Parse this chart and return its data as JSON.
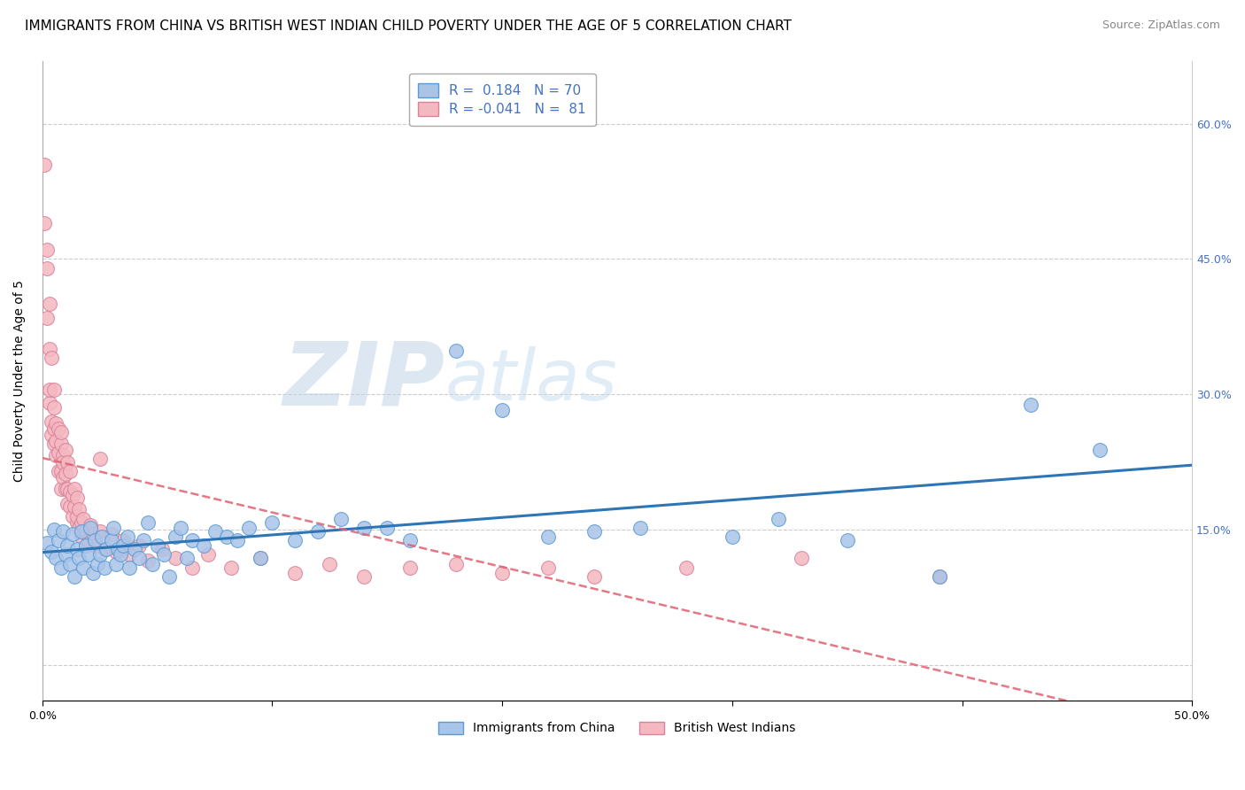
{
  "title": "IMMIGRANTS FROM CHINA VS BRITISH WEST INDIAN CHILD POVERTY UNDER THE AGE OF 5 CORRELATION CHART",
  "source": "Source: ZipAtlas.com",
  "ylabel": "Child Poverty Under the Age of 5",
  "xlim": [
    0.0,
    0.5
  ],
  "ylim": [
    -0.04,
    0.67
  ],
  "xticks": [
    0.0,
    0.1,
    0.2,
    0.3,
    0.4,
    0.5
  ],
  "yticks": [
    0.0,
    0.15,
    0.3,
    0.45,
    0.6
  ],
  "yticklabels_right": [
    "",
    "15.0%",
    "30.0%",
    "45.0%",
    "60.0%"
  ],
  "grid_color": "#cccccc",
  "background_color": "#ffffff",
  "china_color": "#aac4e8",
  "china_edge_color": "#5b9bd5",
  "china_line_color": "#2e75b6",
  "bwi_color": "#f4b8c1",
  "bwi_edge_color": "#d9829a",
  "bwi_line_color": "#e06070",
  "legend_color": "#4472c4",
  "china_R": 0.184,
  "china_N": 70,
  "bwi_R": -0.041,
  "bwi_N": 81,
  "title_fontsize": 11,
  "source_fontsize": 9,
  "axis_label_fontsize": 10,
  "tick_fontsize": 9,
  "legend_fontsize": 11,
  "watermark_zip_color": "#c0d4e8",
  "watermark_atlas_color": "#c8ddf0",
  "china_scatter_x": [
    0.002,
    0.004,
    0.005,
    0.006,
    0.007,
    0.008,
    0.009,
    0.01,
    0.011,
    0.012,
    0.013,
    0.014,
    0.015,
    0.016,
    0.017,
    0.018,
    0.019,
    0.02,
    0.021,
    0.022,
    0.023,
    0.024,
    0.025,
    0.026,
    0.027,
    0.028,
    0.03,
    0.031,
    0.032,
    0.033,
    0.034,
    0.035,
    0.037,
    0.038,
    0.04,
    0.042,
    0.044,
    0.046,
    0.048,
    0.05,
    0.053,
    0.055,
    0.058,
    0.06,
    0.063,
    0.065,
    0.07,
    0.075,
    0.08,
    0.085,
    0.09,
    0.095,
    0.1,
    0.11,
    0.12,
    0.13,
    0.14,
    0.15,
    0.16,
    0.18,
    0.2,
    0.22,
    0.24,
    0.26,
    0.3,
    0.32,
    0.35,
    0.39,
    0.43,
    0.46
  ],
  "china_scatter_y": [
    0.135,
    0.125,
    0.15,
    0.118,
    0.138,
    0.108,
    0.148,
    0.122,
    0.132,
    0.112,
    0.145,
    0.098,
    0.128,
    0.118,
    0.148,
    0.108,
    0.132,
    0.122,
    0.152,
    0.102,
    0.138,
    0.112,
    0.122,
    0.142,
    0.108,
    0.128,
    0.138,
    0.152,
    0.112,
    0.128,
    0.122,
    0.132,
    0.142,
    0.108,
    0.128,
    0.118,
    0.138,
    0.158,
    0.112,
    0.132,
    0.122,
    0.098,
    0.142,
    0.152,
    0.118,
    0.138,
    0.132,
    0.148,
    0.142,
    0.138,
    0.152,
    0.118,
    0.158,
    0.138,
    0.148,
    0.162,
    0.152,
    0.152,
    0.138,
    0.348,
    0.282,
    0.142,
    0.148,
    0.152,
    0.142,
    0.162,
    0.138,
    0.098,
    0.288,
    0.238
  ],
  "bwi_scatter_x": [
    0.001,
    0.001,
    0.002,
    0.002,
    0.002,
    0.003,
    0.003,
    0.003,
    0.003,
    0.004,
    0.004,
    0.004,
    0.005,
    0.005,
    0.005,
    0.005,
    0.006,
    0.006,
    0.006,
    0.007,
    0.007,
    0.007,
    0.008,
    0.008,
    0.008,
    0.008,
    0.009,
    0.009,
    0.009,
    0.01,
    0.01,
    0.01,
    0.011,
    0.011,
    0.011,
    0.012,
    0.012,
    0.012,
    0.013,
    0.013,
    0.014,
    0.014,
    0.015,
    0.015,
    0.015,
    0.016,
    0.016,
    0.017,
    0.017,
    0.018,
    0.019,
    0.02,
    0.021,
    0.022,
    0.023,
    0.025,
    0.027,
    0.03,
    0.032,
    0.035,
    0.038,
    0.042,
    0.046,
    0.052,
    0.058,
    0.065,
    0.072,
    0.082,
    0.095,
    0.11,
    0.125,
    0.14,
    0.16,
    0.18,
    0.2,
    0.22,
    0.24,
    0.28,
    0.33,
    0.39,
    0.025
  ],
  "bwi_scatter_y": [
    0.555,
    0.49,
    0.44,
    0.385,
    0.46,
    0.4,
    0.35,
    0.29,
    0.305,
    0.27,
    0.34,
    0.255,
    0.305,
    0.262,
    0.285,
    0.245,
    0.268,
    0.232,
    0.248,
    0.262,
    0.235,
    0.215,
    0.245,
    0.215,
    0.258,
    0.195,
    0.232,
    0.208,
    0.225,
    0.212,
    0.195,
    0.238,
    0.225,
    0.178,
    0.195,
    0.215,
    0.192,
    0.175,
    0.188,
    0.165,
    0.195,
    0.175,
    0.158,
    0.185,
    0.165,
    0.152,
    0.172,
    0.158,
    0.142,
    0.162,
    0.148,
    0.138,
    0.155,
    0.145,
    0.132,
    0.148,
    0.128,
    0.145,
    0.125,
    0.138,
    0.122,
    0.132,
    0.115,
    0.128,
    0.118,
    0.108,
    0.122,
    0.108,
    0.118,
    0.102,
    0.112,
    0.098,
    0.108,
    0.112,
    0.102,
    0.108,
    0.098,
    0.108,
    0.118,
    0.098,
    0.228
  ]
}
